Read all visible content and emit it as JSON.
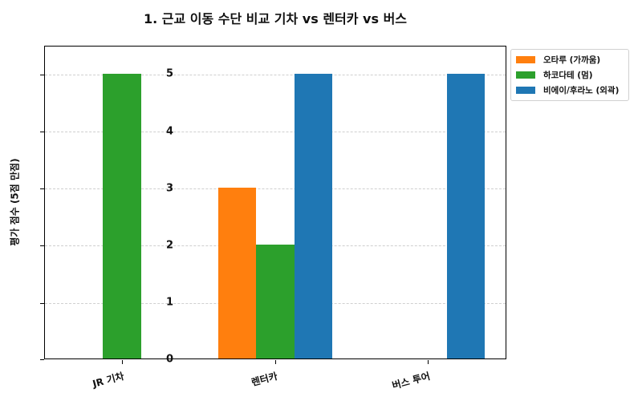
{
  "chart_data": {
    "type": "bar",
    "title": "1. 근교 이동 수단 비교 기차 vs 렌터카 vs 버스",
    "xlabel": "",
    "ylabel": "평가 점수 (5점 만점)",
    "ylim": [
      0,
      5.5
    ],
    "yticks": [
      "0",
      "1",
      "2",
      "3",
      "4",
      "5"
    ],
    "grid": "y-dashed",
    "legend_position": "outside-upper-right",
    "categories": [
      "JR 기차",
      "렌터카",
      "버스 투어"
    ],
    "series": [
      {
        "name": "오타루 (가까움)",
        "color": "#ff7f0e",
        "values": [
          0,
          3,
          0
        ]
      },
      {
        "name": "하코다테 (멈)",
        "color": "#2ca02c",
        "values": [
          5,
          2,
          0
        ]
      },
      {
        "name": "비에이/후라노 (외곽)",
        "color": "#1f77b4",
        "values": [
          0,
          5,
          5
        ]
      }
    ]
  }
}
